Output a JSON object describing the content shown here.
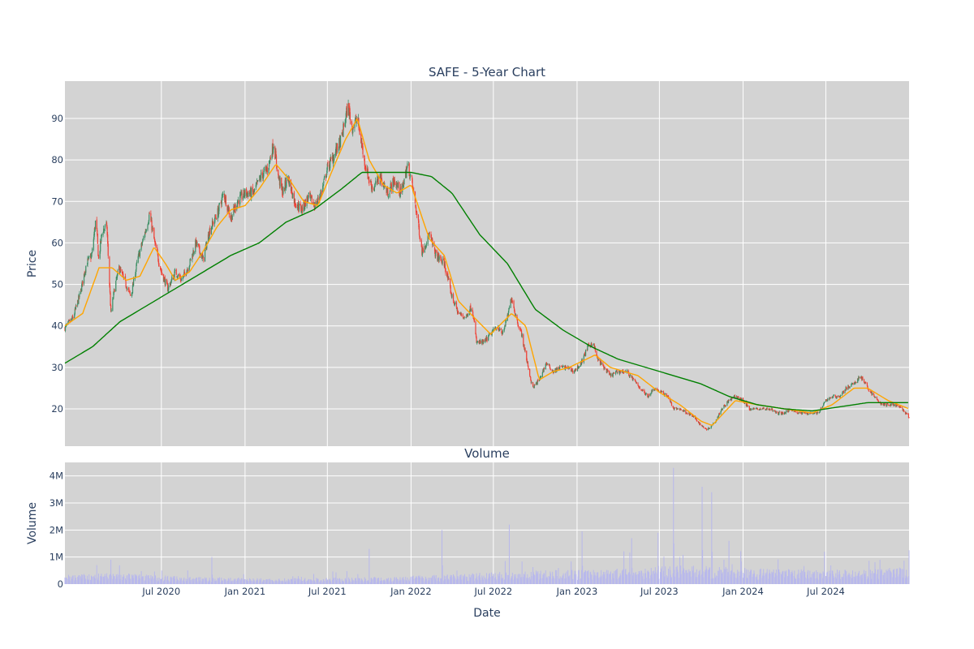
{
  "chart_data": [
    {
      "type": "candlestick",
      "title": "SAFE - 5-Year Chart",
      "xlabel": "",
      "ylabel": "Price",
      "ylim": [
        11,
        99
      ],
      "y_ticks": [
        20,
        30,
        40,
        50,
        60,
        70,
        80,
        90
      ],
      "x_range": [
        "2019-12-02",
        "2024-12-31"
      ],
      "grid": true,
      "colors": {
        "increasing": "#3d8f66",
        "decreasing": "#ef4136",
        "ma_short": "#ffa500",
        "ma_long": "#008000",
        "plot_bg": "#d3d3d3"
      },
      "price_path": [
        [
          "2019-12-02",
          39.5
        ],
        [
          "2019-12-20",
          42
        ],
        [
          "2020-01-05",
          48
        ],
        [
          "2020-01-18",
          55
        ],
        [
          "2020-01-30",
          57
        ],
        [
          "2020-02-08",
          66
        ],
        [
          "2020-02-14",
          56
        ],
        [
          "2020-02-22",
          63
        ],
        [
          "2020-03-03",
          64
        ],
        [
          "2020-03-12",
          43
        ],
        [
          "2020-03-20",
          49
        ],
        [
          "2020-03-30",
          54
        ],
        [
          "2020-04-10",
          51
        ],
        [
          "2020-04-25",
          47
        ],
        [
          "2020-05-10",
          56
        ],
        [
          "2020-05-25",
          62
        ],
        [
          "2020-06-05",
          67
        ],
        [
          "2020-06-18",
          59
        ],
        [
          "2020-07-01",
          53
        ],
        [
          "2020-07-15",
          49
        ],
        [
          "2020-08-01",
          53
        ],
        [
          "2020-08-15",
          51
        ],
        [
          "2020-09-01",
          55
        ],
        [
          "2020-09-15",
          60
        ],
        [
          "2020-10-01",
          56
        ],
        [
          "2020-10-15",
          63
        ],
        [
          "2020-11-01",
          67
        ],
        [
          "2020-11-15",
          72
        ],
        [
          "2020-12-01",
          66
        ],
        [
          "2020-12-15",
          70
        ],
        [
          "2021-01-01",
          72
        ],
        [
          "2021-01-20",
          72
        ],
        [
          "2021-02-05",
          76
        ],
        [
          "2021-02-20",
          78
        ],
        [
          "2021-03-05",
          84
        ],
        [
          "2021-03-15",
          76
        ],
        [
          "2021-03-25",
          72
        ],
        [
          "2021-04-05",
          76
        ],
        [
          "2021-04-20",
          70
        ],
        [
          "2021-05-05",
          68
        ],
        [
          "2021-05-20",
          71
        ],
        [
          "2021-06-05",
          69
        ],
        [
          "2021-06-20",
          73
        ],
        [
          "2021-07-01",
          78
        ],
        [
          "2021-07-15",
          81
        ],
        [
          "2021-08-01",
          85
        ],
        [
          "2021-08-15",
          93
        ],
        [
          "2021-08-25",
          88
        ],
        [
          "2021-09-05",
          90
        ],
        [
          "2021-09-20",
          80
        ],
        [
          "2021-10-01",
          75
        ],
        [
          "2021-10-10",
          73
        ],
        [
          "2021-10-25",
          76
        ],
        [
          "2021-11-10",
          72
        ],
        [
          "2021-11-25",
          75
        ],
        [
          "2021-12-10",
          72
        ],
        [
          "2021-12-25",
          79
        ],
        [
          "2022-01-05",
          73
        ],
        [
          "2022-01-15",
          66
        ],
        [
          "2022-01-25",
          58
        ],
        [
          "2022-02-10",
          62
        ],
        [
          "2022-02-25",
          57
        ],
        [
          "2022-03-15",
          55
        ],
        [
          "2022-04-01",
          47
        ],
        [
          "2022-04-15",
          43
        ],
        [
          "2022-05-01",
          42
        ],
        [
          "2022-05-15",
          45
        ],
        [
          "2022-05-25",
          36
        ],
        [
          "2022-06-10",
          36
        ],
        [
          "2022-06-25",
          38
        ],
        [
          "2022-07-10",
          40
        ],
        [
          "2022-07-20",
          38
        ],
        [
          "2022-08-01",
          42
        ],
        [
          "2022-08-10",
          47
        ],
        [
          "2022-08-20",
          42
        ],
        [
          "2022-09-01",
          38
        ],
        [
          "2022-09-10",
          33
        ],
        [
          "2022-09-25",
          25
        ],
        [
          "2022-10-10",
          27
        ],
        [
          "2022-10-25",
          31
        ],
        [
          "2022-11-10",
          29
        ],
        [
          "2022-11-25",
          30
        ],
        [
          "2022-12-10",
          30
        ],
        [
          "2022-12-25",
          29
        ],
        [
          "2023-01-10",
          31
        ],
        [
          "2023-01-25",
          35
        ],
        [
          "2023-02-05",
          36
        ],
        [
          "2023-02-15",
          32
        ],
        [
          "2023-03-01",
          30
        ],
        [
          "2023-03-15",
          28
        ],
        [
          "2023-04-01",
          29
        ],
        [
          "2023-04-20",
          29
        ],
        [
          "2023-05-05",
          27
        ],
        [
          "2023-05-20",
          25
        ],
        [
          "2023-06-05",
          23
        ],
        [
          "2023-06-20",
          25
        ],
        [
          "2023-07-05",
          24
        ],
        [
          "2023-07-20",
          23
        ],
        [
          "2023-08-01",
          20
        ],
        [
          "2023-08-15",
          20
        ],
        [
          "2023-09-01",
          19
        ],
        [
          "2023-09-15",
          18
        ],
        [
          "2023-10-01",
          16
        ],
        [
          "2023-10-15",
          15
        ],
        [
          "2023-11-01",
          17
        ],
        [
          "2023-11-15",
          20
        ],
        [
          "2023-12-01",
          22
        ],
        [
          "2023-12-15",
          23
        ],
        [
          "2024-01-01",
          22
        ],
        [
          "2024-01-15",
          20
        ],
        [
          "2024-02-01",
          20
        ],
        [
          "2024-02-15",
          20
        ],
        [
          "2024-03-01",
          20
        ],
        [
          "2024-03-15",
          19
        ],
        [
          "2024-04-01",
          19
        ],
        [
          "2024-04-15",
          20
        ],
        [
          "2024-05-01",
          19
        ],
        [
          "2024-05-15",
          19
        ],
        [
          "2024-06-01",
          19
        ],
        [
          "2024-06-15",
          19
        ],
        [
          "2024-07-01",
          22
        ],
        [
          "2024-07-15",
          23
        ],
        [
          "2024-08-01",
          23
        ],
        [
          "2024-08-15",
          25
        ],
        [
          "2024-09-01",
          26
        ],
        [
          "2024-09-15",
          28
        ],
        [
          "2024-10-01",
          25
        ],
        [
          "2024-10-15",
          23
        ],
        [
          "2024-11-01",
          21
        ],
        [
          "2024-11-15",
          21
        ],
        [
          "2024-12-01",
          21
        ],
        [
          "2024-12-15",
          20
        ],
        [
          "2024-12-31",
          18
        ]
      ],
      "ma_short": [
        [
          "2019-12-02",
          40
        ],
        [
          "2020-01-10",
          43
        ],
        [
          "2020-02-15",
          54
        ],
        [
          "2020-03-15",
          54
        ],
        [
          "2020-04-15",
          51
        ],
        [
          "2020-05-15",
          52
        ],
        [
          "2020-06-15",
          59
        ],
        [
          "2020-07-10",
          55
        ],
        [
          "2020-08-01",
          51
        ],
        [
          "2020-09-01",
          53
        ],
        [
          "2020-10-01",
          58
        ],
        [
          "2020-11-01",
          64
        ],
        [
          "2020-12-01",
          68
        ],
        [
          "2021-01-01",
          69
        ],
        [
          "2021-02-01",
          73
        ],
        [
          "2021-03-10",
          79
        ],
        [
          "2021-04-10",
          75
        ],
        [
          "2021-05-10",
          70
        ],
        [
          "2021-06-10",
          69
        ],
        [
          "2021-07-10",
          77
        ],
        [
          "2021-08-10",
          85
        ],
        [
          "2021-09-05",
          90
        ],
        [
          "2021-10-01",
          80
        ],
        [
          "2021-11-01",
          74
        ],
        [
          "2021-12-01",
          72
        ],
        [
          "2022-01-01",
          74
        ],
        [
          "2022-02-10",
          61
        ],
        [
          "2022-03-15",
          57
        ],
        [
          "2022-04-15",
          46
        ],
        [
          "2022-05-20",
          42
        ],
        [
          "2022-06-25",
          38
        ],
        [
          "2022-08-10",
          43
        ],
        [
          "2022-09-10",
          40
        ],
        [
          "2022-10-10",
          27
        ],
        [
          "2022-11-10",
          29
        ],
        [
          "2022-12-15",
          30
        ],
        [
          "2023-02-10",
          33
        ],
        [
          "2023-03-15",
          30
        ],
        [
          "2023-05-15",
          28
        ],
        [
          "2023-07-01",
          24
        ],
        [
          "2023-08-15",
          21
        ],
        [
          "2023-10-01",
          17
        ],
        [
          "2023-10-25",
          16
        ],
        [
          "2023-12-15",
          22
        ],
        [
          "2024-02-01",
          21
        ],
        [
          "2024-04-01",
          20
        ],
        [
          "2024-06-01",
          19
        ],
        [
          "2024-07-15",
          21
        ],
        [
          "2024-09-01",
          25
        ],
        [
          "2024-10-01",
          25
        ],
        [
          "2024-11-15",
          22
        ],
        [
          "2024-12-31",
          20
        ]
      ],
      "ma_long": [
        [
          "2019-12-02",
          31
        ],
        [
          "2020-02-01",
          35
        ],
        [
          "2020-04-01",
          41
        ],
        [
          "2020-06-01",
          45
        ],
        [
          "2020-08-01",
          49
        ],
        [
          "2020-10-01",
          53
        ],
        [
          "2020-12-01",
          57
        ],
        [
          "2021-02-01",
          60
        ],
        [
          "2021-04-01",
          65
        ],
        [
          "2021-06-01",
          68
        ],
        [
          "2021-08-01",
          73
        ],
        [
          "2021-09-15",
          77
        ],
        [
          "2021-11-15",
          77
        ],
        [
          "2022-01-01",
          77
        ],
        [
          "2022-02-15",
          76
        ],
        [
          "2022-04-01",
          72
        ],
        [
          "2022-06-01",
          62
        ],
        [
          "2022-08-01",
          55
        ],
        [
          "2022-10-01",
          44
        ],
        [
          "2022-12-01",
          39
        ],
        [
          "2023-02-01",
          35
        ],
        [
          "2023-04-01",
          32
        ],
        [
          "2023-06-01",
          30
        ],
        [
          "2023-08-01",
          28
        ],
        [
          "2023-10-01",
          26
        ],
        [
          "2023-12-01",
          23
        ],
        [
          "2024-02-01",
          21
        ],
        [
          "2024-04-01",
          20
        ],
        [
          "2024-06-01",
          19.5
        ],
        [
          "2024-08-01",
          20.5
        ],
        [
          "2024-10-01",
          21.5
        ],
        [
          "2024-12-31",
          21.5
        ]
      ]
    },
    {
      "type": "bar",
      "title": "Volume",
      "xlabel": "Date",
      "ylabel": "Volume",
      "ylim": [
        0,
        4500000
      ],
      "y_ticks": [
        0,
        1000000,
        2000000,
        3000000,
        4000000
      ],
      "y_tick_labels": [
        "0",
        "1M",
        "2M",
        "3M",
        "4M"
      ],
      "x_ticks": [
        "2020-07-01",
        "2021-01-01",
        "2021-07-01",
        "2022-01-01",
        "2022-07-01",
        "2023-01-01",
        "2023-07-01",
        "2024-01-01",
        "2024-07-01"
      ],
      "x_tick_labels": [
        "Jul 2020",
        "Jan 2021",
        "Jul 2021",
        "Jan 2022",
        "Jul 2022",
        "Jan 2023",
        "Jul 2023",
        "Jan 2024",
        "Jul 2024"
      ],
      "grid": true,
      "colors": {
        "bar": "#b8b8ec",
        "plot_bg": "#d3d3d3"
      },
      "baseline_profile": [
        [
          "2019-12-02",
          250000
        ],
        [
          "2020-04-01",
          300000
        ],
        [
          "2020-09-01",
          200000
        ],
        [
          "2021-03-01",
          150000
        ],
        [
          "2021-09-01",
          180000
        ],
        [
          "2022-03-01",
          250000
        ],
        [
          "2022-09-01",
          350000
        ],
        [
          "2023-03-01",
          400000
        ],
        [
          "2023-09-01",
          500000
        ],
        [
          "2024-03-01",
          400000
        ],
        [
          "2024-09-01",
          380000
        ],
        [
          "2024-12-31",
          450000
        ]
      ],
      "spikes": [
        [
          "2020-02-10",
          700000
        ],
        [
          "2020-03-12",
          900000
        ],
        [
          "2020-10-20",
          1000000
        ],
        [
          "2021-10-01",
          1300000
        ],
        [
          "2022-03-10",
          2000000
        ],
        [
          "2022-08-05",
          2200000
        ],
        [
          "2022-09-25",
          1800000
        ],
        [
          "2022-11-20",
          1700000
        ],
        [
          "2023-01-12",
          1950000
        ],
        [
          "2023-05-01",
          1700000
        ],
        [
          "2023-06-28",
          1900000
        ],
        [
          "2023-08-01",
          4300000
        ],
        [
          "2023-08-15",
          1000000
        ],
        [
          "2023-10-03",
          3600000
        ],
        [
          "2023-10-24",
          3400000
        ],
        [
          "2023-11-20",
          900000
        ],
        [
          "2023-12-01",
          1600000
        ],
        [
          "2024-06-28",
          1200000
        ],
        [
          "2024-10-28",
          900000
        ],
        [
          "2024-12-15",
          1600000
        ]
      ]
    }
  ]
}
